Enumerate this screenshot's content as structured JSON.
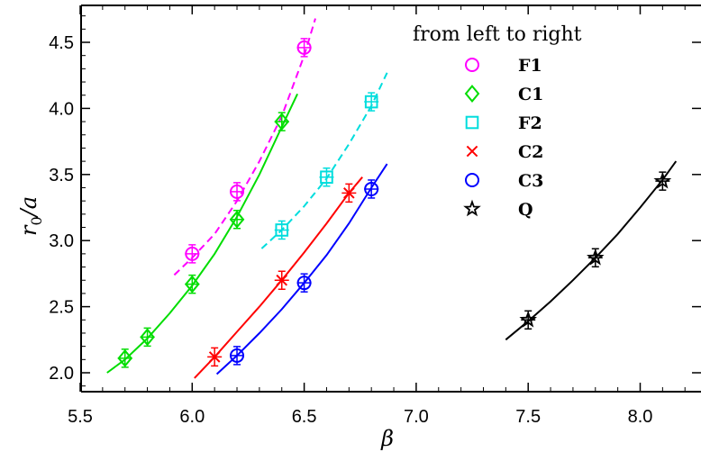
{
  "chart_data": {
    "type": "scatter",
    "xlabel": "β",
    "ylabel": "r0/a",
    "xlim": [
      5.5,
      8.25
    ],
    "ylim": [
      1.9,
      4.75
    ],
    "xticks": [
      "5.5",
      "6.0",
      "6.5",
      "7.0",
      "7.5",
      "8.0"
    ],
    "yticks": [
      "2.0",
      "2.5",
      "3.0",
      "3.5",
      "4.0",
      "4.5"
    ],
    "legend_title": "from left to right",
    "legend_placement": "top-right",
    "series": [
      {
        "name": "F1",
        "marker": "circle",
        "color": "#ff00ff",
        "line_style": "dashed",
        "points": [
          [
            6.0,
            2.9
          ],
          [
            6.2,
            3.37
          ],
          [
            6.5,
            4.46
          ]
        ],
        "fit": [
          [
            5.92,
            2.74
          ],
          [
            6.0,
            2.87
          ],
          [
            6.1,
            3.05
          ],
          [
            6.2,
            3.3
          ],
          [
            6.3,
            3.6
          ],
          [
            6.4,
            3.94
          ],
          [
            6.5,
            4.4
          ],
          [
            6.55,
            4.68
          ]
        ]
      },
      {
        "name": "C1",
        "marker": "diamond",
        "color": "#00dd00",
        "line_style": "solid",
        "points": [
          [
            5.7,
            2.11
          ],
          [
            5.8,
            2.27
          ],
          [
            6.0,
            2.67
          ],
          [
            6.2,
            3.16
          ],
          [
            6.4,
            3.9
          ]
        ],
        "fit": [
          [
            5.62,
            2.0
          ],
          [
            5.7,
            2.1
          ],
          [
            5.8,
            2.26
          ],
          [
            5.9,
            2.45
          ],
          [
            6.0,
            2.66
          ],
          [
            6.1,
            2.9
          ],
          [
            6.2,
            3.18
          ],
          [
            6.3,
            3.5
          ],
          [
            6.4,
            3.86
          ],
          [
            6.47,
            4.11
          ]
        ]
      },
      {
        "name": "F2",
        "marker": "square",
        "color": "#00dddd",
        "line_style": "dashed",
        "points": [
          [
            6.4,
            3.08
          ],
          [
            6.6,
            3.48
          ],
          [
            6.8,
            4.05
          ]
        ],
        "fit": [
          [
            6.31,
            2.94
          ],
          [
            6.4,
            3.08
          ],
          [
            6.5,
            3.26
          ],
          [
            6.6,
            3.47
          ],
          [
            6.7,
            3.73
          ],
          [
            6.8,
            4.02
          ],
          [
            6.87,
            4.27
          ]
        ]
      },
      {
        "name": "C2",
        "marker": "cross",
        "color": "#ff0000",
        "line_style": "solid",
        "points": [
          [
            6.1,
            2.12
          ],
          [
            6.4,
            2.7
          ],
          [
            6.7,
            3.36
          ]
        ],
        "fit": [
          [
            6.01,
            1.96
          ],
          [
            6.1,
            2.12
          ],
          [
            6.2,
            2.31
          ],
          [
            6.3,
            2.5
          ],
          [
            6.4,
            2.7
          ],
          [
            6.5,
            2.91
          ],
          [
            6.6,
            3.13
          ],
          [
            6.7,
            3.36
          ],
          [
            6.76,
            3.48
          ]
        ]
      },
      {
        "name": "C3",
        "marker": "circle",
        "color": "#0000ff",
        "line_style": "solid",
        "points": [
          [
            6.2,
            2.13
          ],
          [
            6.5,
            2.68
          ],
          [
            6.8,
            3.39
          ]
        ],
        "fit": [
          [
            6.11,
            1.99
          ],
          [
            6.2,
            2.13
          ],
          [
            6.3,
            2.3
          ],
          [
            6.4,
            2.48
          ],
          [
            6.5,
            2.68
          ],
          [
            6.6,
            2.89
          ],
          [
            6.7,
            3.13
          ],
          [
            6.8,
            3.4
          ],
          [
            6.87,
            3.58
          ]
        ]
      },
      {
        "name": "Q",
        "marker": "star",
        "color": "#000000",
        "line_style": "solid",
        "points": [
          [
            7.5,
            2.4
          ],
          [
            7.8,
            2.87
          ],
          [
            8.1,
            3.45
          ]
        ],
        "fit": [
          [
            7.4,
            2.25
          ],
          [
            7.5,
            2.39
          ],
          [
            7.6,
            2.54
          ],
          [
            7.7,
            2.7
          ],
          [
            7.8,
            2.87
          ],
          [
            7.9,
            3.05
          ],
          [
            8.0,
            3.25
          ],
          [
            8.1,
            3.46
          ],
          [
            8.16,
            3.6
          ]
        ]
      }
    ]
  }
}
